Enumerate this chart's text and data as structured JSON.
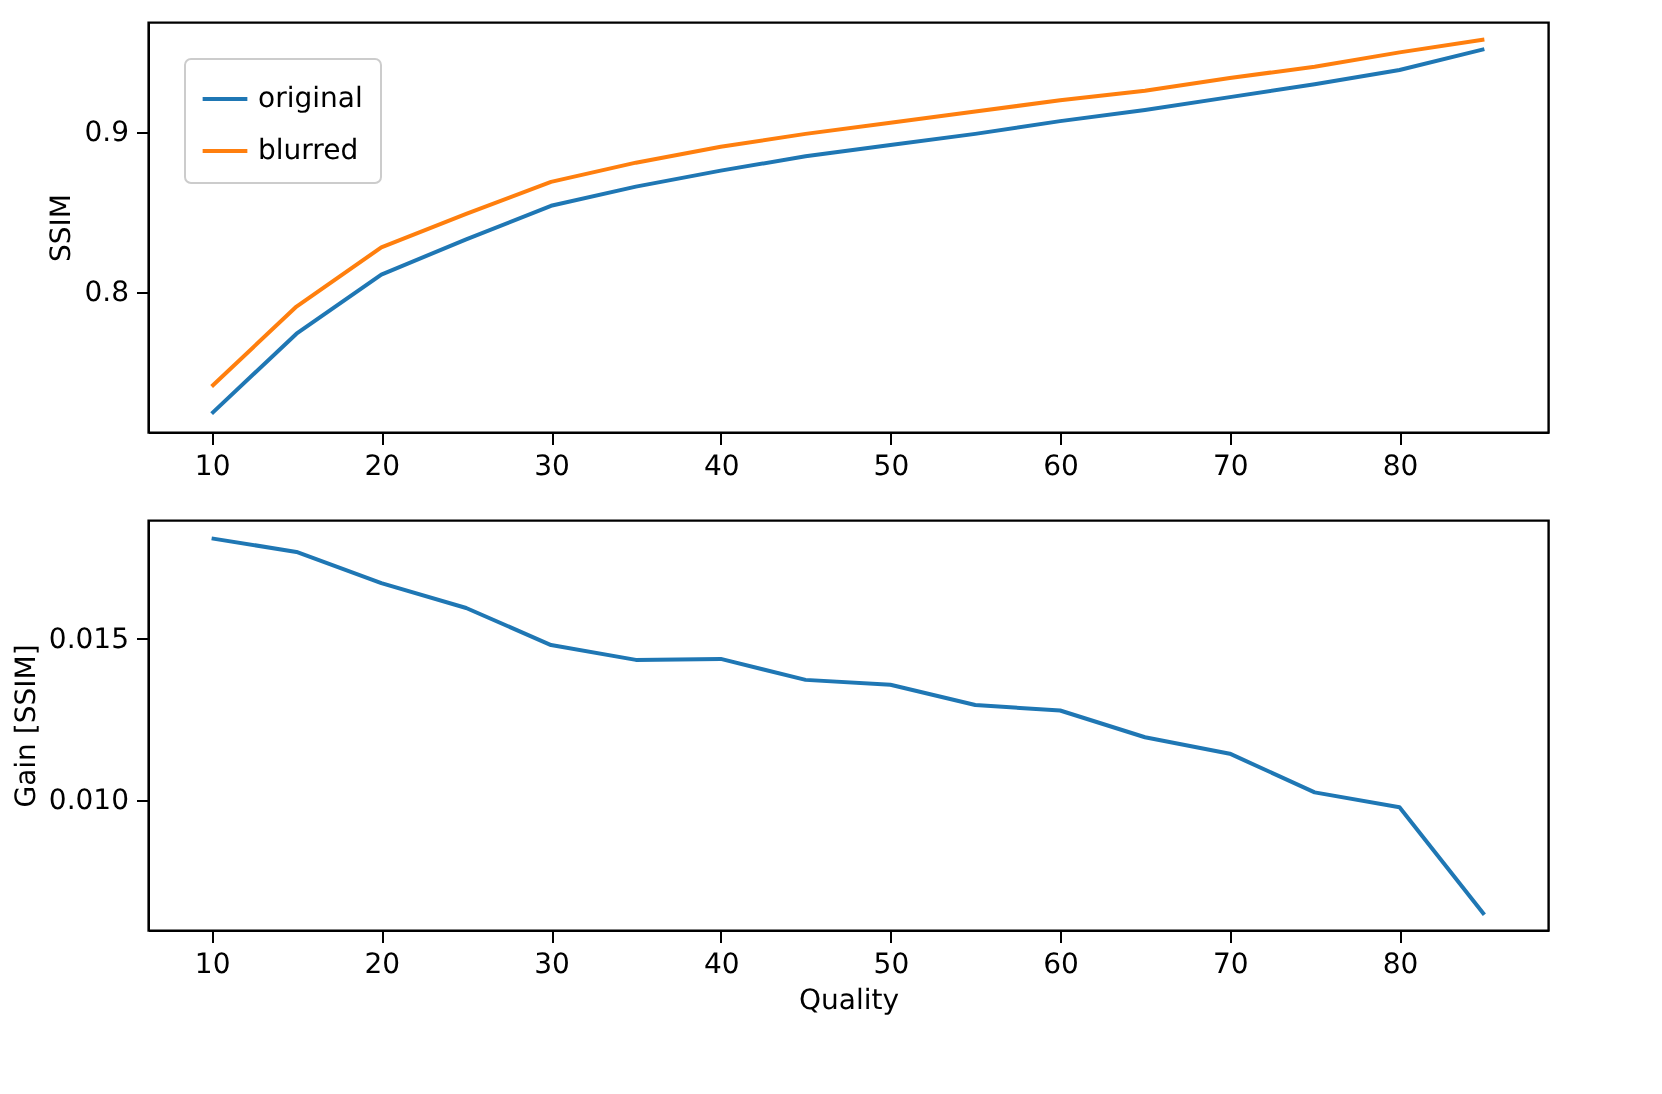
{
  "chart_data": [
    {
      "type": "line",
      "ylabel": "SSIM",
      "x": [
        10,
        15,
        20,
        25,
        30,
        35,
        40,
        45,
        50,
        55,
        60,
        65,
        70,
        75,
        80,
        85
      ],
      "xlim": [
        6.25,
        88.75
      ],
      "xticks": [
        10,
        20,
        30,
        40,
        50,
        60,
        70,
        80
      ],
      "ylim": [
        0.7125,
        0.969
      ],
      "yticks": [
        0.8,
        0.9
      ],
      "grid": false,
      "legend": "top left",
      "series": [
        {
          "name": "original",
          "color": "#1f77b4",
          "values": [
            0.724,
            0.774,
            0.811,
            0.833,
            0.854,
            0.866,
            0.876,
            0.885,
            0.892,
            0.899,
            0.907,
            0.914,
            0.922,
            0.93,
            0.939,
            0.952
          ]
        },
        {
          "name": "blurred",
          "color": "#ff7f0e",
          "values": [
            0.741,
            0.791,
            0.828,
            0.849,
            0.869,
            0.881,
            0.891,
            0.899,
            0.906,
            0.913,
            0.92,
            0.926,
            0.934,
            0.941,
            0.95,
            0.958
          ]
        }
      ]
    },
    {
      "type": "line",
      "xlabel": "Quality",
      "ylabel": "Gain [SSIM]",
      "x": [
        10,
        15,
        20,
        25,
        30,
        35,
        40,
        45,
        50,
        55,
        60,
        65,
        70,
        75,
        80,
        85
      ],
      "xlim": [
        6.25,
        88.75
      ],
      "xticks": [
        10,
        20,
        30,
        40,
        50,
        60,
        70,
        80
      ],
      "ylim": [
        0.00596,
        0.01868
      ],
      "yticks": [
        {
          "value": 0.01,
          "label": "0.010"
        },
        {
          "value": 0.015,
          "label": "0.015"
        }
      ],
      "grid": false,
      "series": [
        {
          "color": "#1f77b4",
          "values": [
            0.01811,
            0.01769,
            0.01672,
            0.01595,
            0.0148,
            0.01434,
            0.01437,
            0.01372,
            0.01357,
            0.01294,
            0.01277,
            0.01194,
            0.01143,
            0.01023,
            0.00977,
            0.00643
          ]
        }
      ]
    }
  ]
}
